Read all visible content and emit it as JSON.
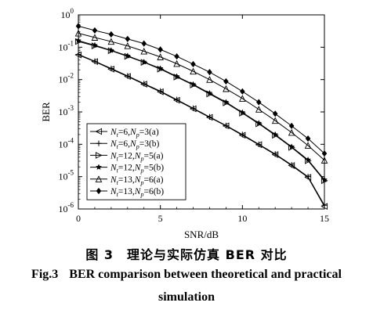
{
  "chart_data": {
    "type": "line",
    "title": "",
    "xlabel": "SNR/dB",
    "ylabel": "BER",
    "xlim": [
      0,
      15
    ],
    "ylim_log10": [
      -6,
      0
    ],
    "y_scale": "log",
    "x_ticks": [
      "0",
      "5",
      "10",
      "15"
    ],
    "y_ticks": [
      {
        "base": "10",
        "exp": "0"
      },
      {
        "base": "10",
        "exp": "-1"
      },
      {
        "base": "10",
        "exp": "-2"
      },
      {
        "base": "10",
        "exp": "-3"
      },
      {
        "base": "10",
        "exp": "-4"
      },
      {
        "base": "10",
        "exp": "-5"
      },
      {
        "base": "10",
        "exp": "-6"
      }
    ],
    "legend_position": "bottom-left",
    "x": [
      0,
      1,
      2,
      3,
      4,
      5,
      6,
      7,
      8,
      9,
      10,
      11,
      12,
      13,
      14,
      15
    ],
    "series": [
      {
        "nt": "6",
        "np": "3",
        "suffix": "(a)",
        "marker": "triangle-left",
        "values": [
          0.058,
          0.036,
          0.021,
          0.0125,
          0.0072,
          0.0042,
          0.0023,
          0.00125,
          0.00068,
          0.00037,
          0.00019,
          9.7e-05,
          4.8e-05,
          2.2e-05,
          9.5e-06,
          1.2e-06
        ]
      },
      {
        "nt": "6",
        "np": "3",
        "suffix": "(b)",
        "marker": "plus",
        "values": [
          0.06,
          0.037,
          0.022,
          0.013,
          0.0075,
          0.0044,
          0.0024,
          0.0013,
          0.0007,
          0.00038,
          0.0002,
          0.0001,
          5e-05,
          2.3e-05,
          1e-05,
          1.3e-06
        ]
      },
      {
        "nt": "12",
        "np": "5",
        "suffix": "(a)",
        "marker": "triangle-right",
        "values": [
          0.15,
          0.11,
          0.078,
          0.052,
          0.034,
          0.021,
          0.012,
          0.0068,
          0.0036,
          0.0019,
          0.00092,
          0.00043,
          0.00019,
          8e-05,
          3.1e-05,
          7.5e-06
        ]
      },
      {
        "nt": "12",
        "np": "5",
        "suffix": "(b)",
        "marker": "star",
        "values": [
          0.16,
          0.115,
          0.08,
          0.054,
          0.035,
          0.022,
          0.0125,
          0.0071,
          0.0038,
          0.002,
          0.00096,
          0.00045,
          0.0002,
          8.4e-05,
          3.3e-05,
          8e-06
        ]
      },
      {
        "nt": "13",
        "np": "6",
        "suffix": "(a)",
        "marker": "triangle-up",
        "values": [
          0.27,
          0.2,
          0.15,
          0.11,
          0.075,
          0.05,
          0.031,
          0.018,
          0.01,
          0.0052,
          0.0026,
          0.0012,
          0.00054,
          0.00023,
          9.2e-05,
          3.2e-05
        ]
      },
      {
        "nt": "13",
        "np": "6",
        "suffix": "(b)",
        "marker": "diamond",
        "values": [
          0.45,
          0.33,
          0.25,
          0.18,
          0.13,
          0.085,
          0.052,
          0.03,
          0.017,
          0.0088,
          0.0043,
          0.002,
          0.00088,
          0.00037,
          0.00015,
          5.2e-05
        ]
      }
    ]
  },
  "caption": {
    "cn": "图 3　理论与实际仿真 BER 对比",
    "en_fig": "Fig.3",
    "en_line1": "BER comparison between theoretical and practical",
    "en_line2": "simulation"
  }
}
